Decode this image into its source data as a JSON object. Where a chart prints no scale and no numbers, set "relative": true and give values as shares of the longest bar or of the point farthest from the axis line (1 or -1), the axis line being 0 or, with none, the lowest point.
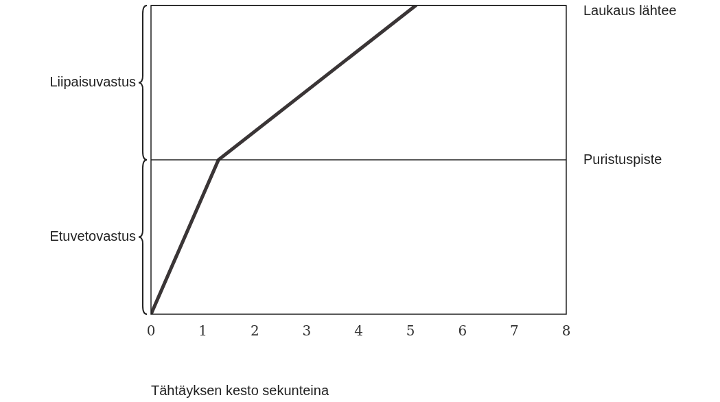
{
  "chart_data": {
    "type": "line",
    "xlabel": "Tähtäyksen kesto sekunteina",
    "relative": true,
    "x": [
      0,
      1.3,
      5.1
    ],
    "series": [
      {
        "color": "#3a3536",
        "values": [
          0,
          0.5,
          1
        ]
      }
    ],
    "xlim": [
      0,
      8
    ],
    "xticks": [
      0,
      1,
      2,
      3,
      4,
      5,
      6,
      7,
      8
    ],
    "grid": false,
    "legend": false,
    "marker": "none",
    "line_style": "solid",
    "ref_lines": [
      {
        "axis": "y",
        "value": 0.5,
        "label": "Puristuspiste",
        "color": "#222222"
      },
      {
        "axis": "y",
        "value": 1,
        "label": "Laukaus lähtee",
        "color": "#222222"
      }
    ],
    "annotations": [
      "Liipaisuvastus",
      "Etuvetovastus"
    ]
  }
}
